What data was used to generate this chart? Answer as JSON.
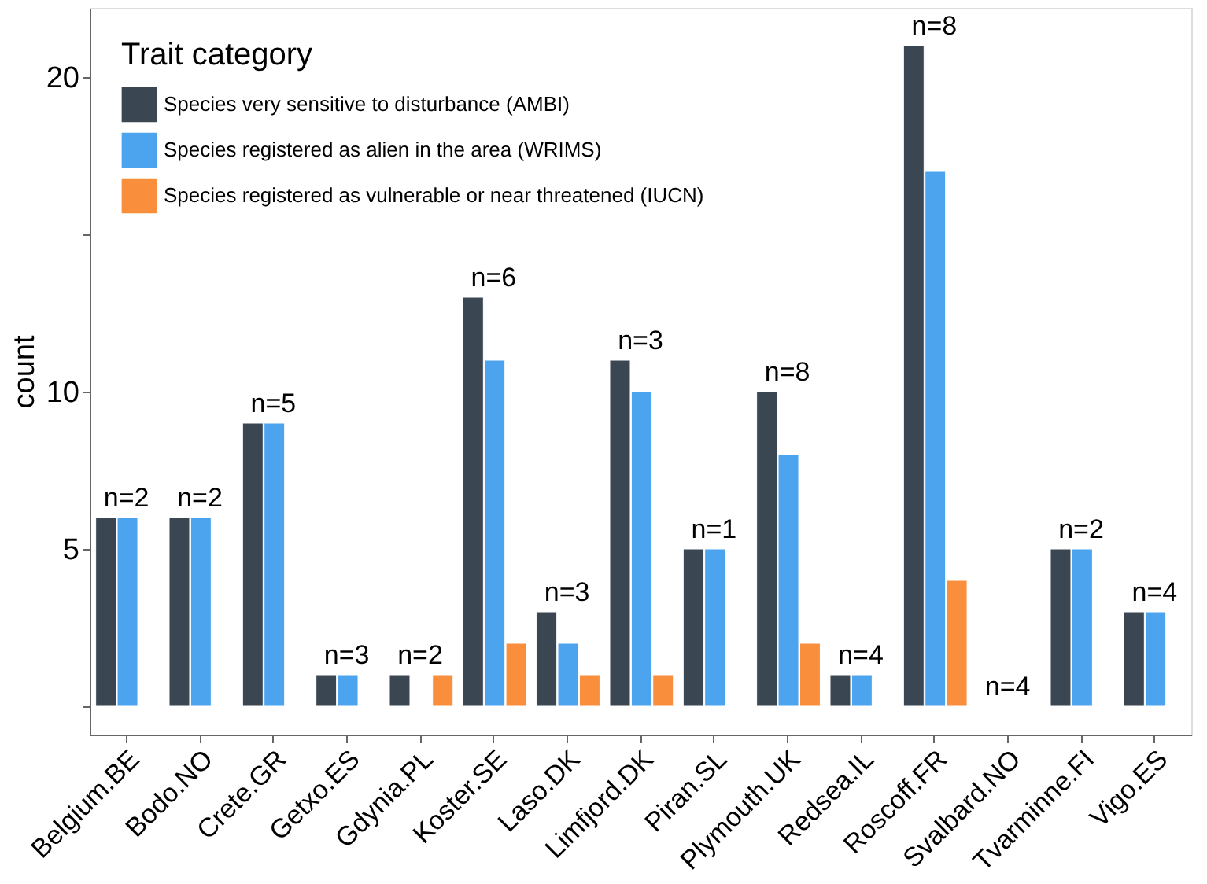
{
  "chart_data": {
    "type": "bar",
    "ylabel": "count",
    "legend_title": "Trait category",
    "legend": "top left",
    "grid": false,
    "categories": [
      "Belgium.BE",
      "Bodo.NO",
      "Crete.GR",
      "Getxo.ES",
      "Gdynia.PL",
      "Koster.SE",
      "Laso.DK",
      "Limfjord.DK",
      "Piran.SL",
      "Plymouth.UK",
      "Redsea.IL",
      "Roscoff.FR",
      "Svalbard.NO",
      "Tvarminne.FI",
      "Vigo.ES"
    ],
    "series": [
      {
        "name": "Species very sensitive to disturbance (AMBI)",
        "color": "#3a4753",
        "values": [
          6,
          6,
          9,
          1,
          1,
          13,
          3,
          11,
          5,
          10,
          1,
          21,
          null,
          5,
          3
        ]
      },
      {
        "name": "Species registered as alien in the area (WRIMS)",
        "color": "#4ca3ee",
        "values": [
          6,
          6,
          9,
          1,
          null,
          11,
          2,
          10,
          5,
          8,
          1,
          17,
          null,
          5,
          3
        ]
      },
      {
        "name": "Species registered as vulnerable or near threatened (IUCN)",
        "color": "#f98e3c",
        "values": [
          null,
          null,
          null,
          null,
          1,
          2,
          1,
          1,
          null,
          2,
          null,
          4,
          null,
          null,
          null
        ]
      }
    ],
    "ylim": [
      -0.9,
      22.2
    ],
    "yticks": [
      {
        "value": 0,
        "label": null
      },
      5,
      10,
      {
        "value": 15,
        "label": null
      },
      20
    ],
    "annotations": [
      "n=2",
      "n=2",
      "n=5",
      "n=3",
      "n=2",
      "n=6",
      "n=3",
      "n=3",
      "n=1",
      "n=8",
      "n=4",
      "n=8",
      "n=4",
      "n=2",
      "n=4"
    ]
  }
}
